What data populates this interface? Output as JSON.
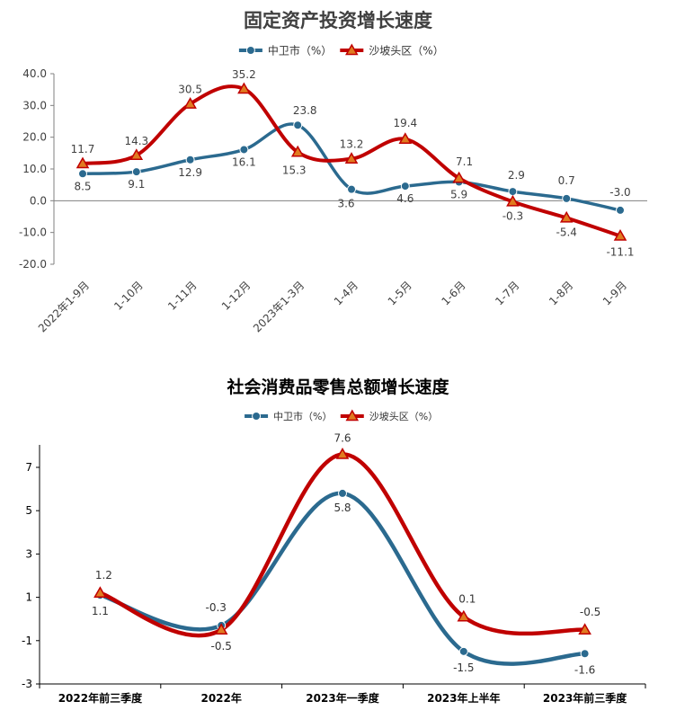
{
  "chart_data": [
    {
      "type": "line",
      "title": "固定资产投资增长速度",
      "categories": [
        "2022年1-9月",
        "1-10月",
        "1-11月",
        "1-12月",
        "2023年1-3月",
        "1-4月",
        "1-5月",
        "1-6月",
        "1-7月",
        "1-8月",
        "1-9月"
      ],
      "series": [
        {
          "name": "中卫市（%）",
          "values": [
            8.5,
            9.1,
            12.9,
            16.1,
            23.8,
            3.6,
            4.6,
            5.9,
            2.9,
            0.7,
            -3.0
          ],
          "color": "#2b6a8f",
          "marker": "circle"
        },
        {
          "name": "沙坡头区（%）",
          "values": [
            11.7,
            14.3,
            30.5,
            35.2,
            15.3,
            13.2,
            19.4,
            7.1,
            -0.3,
            -5.4,
            -11.1
          ],
          "color": "#c00000",
          "marker": "triangle"
        }
      ],
      "yticks": [
        "40.0",
        "30.0",
        "20.0",
        "10.0",
        "0.0",
        "-10.0",
        "-20.0"
      ],
      "ylim": [
        -20,
        40
      ],
      "legend_position": "top-center",
      "smooth": true
    },
    {
      "type": "line",
      "title": "社会消费品零售总额增长速度",
      "categories": [
        "2022年前三季度",
        "2022年",
        "2023年一季度",
        "2023年上半年",
        "2023年前三季度"
      ],
      "series": [
        {
          "name": "中卫市（%）",
          "values": [
            1.1,
            -0.3,
            5.8,
            -1.5,
            -1.6
          ],
          "color": "#2b6a8f",
          "marker": "circle"
        },
        {
          "name": "沙坡头区（%）",
          "values": [
            1.2,
            -0.5,
            7.6,
            0.1,
            -0.5
          ],
          "color": "#c00000",
          "marker": "triangle"
        }
      ],
      "yticks": [
        "7",
        "5",
        "3",
        "1",
        "-1",
        "-3"
      ],
      "ylim": [
        -3,
        8.5
      ],
      "legend_position": "top-center",
      "smooth": true
    }
  ]
}
